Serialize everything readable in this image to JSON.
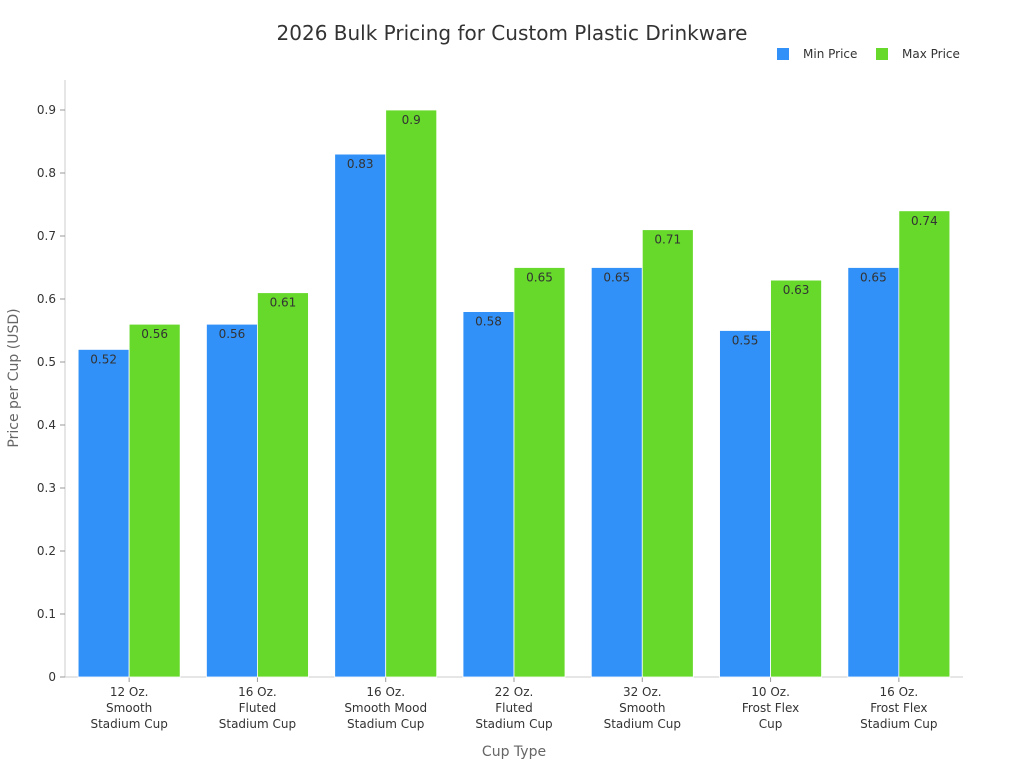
{
  "chart_data": {
    "type": "bar",
    "title": "2026 Bulk Pricing for Custom Plastic Drinkware",
    "xlabel": "Cup Type",
    "ylabel": "Price per Cup (USD)",
    "ylim": [
      0,
      0.95
    ],
    "yticks": [
      "0",
      "0.1",
      "0.2",
      "0.3",
      "0.4",
      "0.5",
      "0.6",
      "0.7",
      "0.8",
      "0.9"
    ],
    "grid": false,
    "legend_position": "top-right",
    "categories": [
      [
        "12 Oz.",
        "Smooth",
        "Stadium Cup"
      ],
      [
        "16 Oz.",
        "Fluted",
        "Stadium Cup"
      ],
      [
        "16 Oz.",
        "Smooth Mood",
        "Stadium Cup"
      ],
      [
        "22 Oz.",
        "Fluted",
        "Stadium Cup"
      ],
      [
        "32 Oz.",
        "Smooth",
        "Stadium Cup"
      ],
      [
        "10 Oz.",
        "Frost Flex",
        "Cup"
      ],
      [
        "16 Oz.",
        "Frost Flex",
        "Stadium Cup"
      ]
    ],
    "series": [
      {
        "name": "Min Price",
        "color": "#3291f8",
        "values": [
          0.52,
          0.56,
          0.83,
          0.58,
          0.65,
          0.55,
          0.65
        ]
      },
      {
        "name": "Max Price",
        "color": "#66d92a",
        "values": [
          0.56,
          0.61,
          0.9,
          0.65,
          0.71,
          0.63,
          0.74
        ]
      }
    ]
  }
}
